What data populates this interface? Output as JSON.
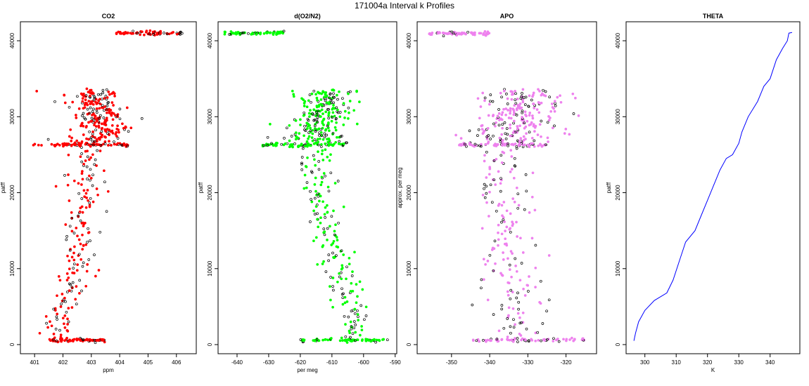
{
  "figure_title": "171004a   Interval k Profiles",
  "colors": {
    "co2": "#ff0000",
    "o2n2": "#00ff00",
    "apo": "#ee82ee",
    "theta": "#0000ff",
    "outline": "#000000"
  },
  "chart_data": [
    {
      "type": "scatter",
      "title": "CO2",
      "xlabel": "ppm",
      "ylabel": "patff",
      "xlim": [
        400.5,
        406.7
      ],
      "ylim": [
        -1200,
        42500
      ],
      "xticks": [
        401,
        402,
        403,
        404,
        405,
        406
      ],
      "yticks": [
        0,
        10000,
        20000,
        30000,
        40000
      ],
      "color_key": "co2",
      "min_value": 401.0,
      "profile": [
        [
          0,
          401.8
        ],
        [
          2000,
          401.8
        ],
        [
          4000,
          401.9
        ],
        [
          6000,
          402.1
        ],
        [
          8000,
          402.3
        ],
        [
          10000,
          402.5
        ],
        [
          12000,
          402.5
        ],
        [
          14000,
          402.6
        ],
        [
          16000,
          402.6
        ],
        [
          18000,
          402.7
        ],
        [
          20000,
          402.8
        ],
        [
          22000,
          402.8
        ],
        [
          24000,
          402.9
        ],
        [
          26300,
          402.9
        ],
        [
          28000,
          403.3
        ],
        [
          30000,
          403.2
        ],
        [
          33500,
          403.0
        ]
      ],
      "spread": 0.3,
      "bands": [
        {
          "y": 600,
          "x0": 401.5,
          "x1": 403.5
        },
        {
          "y": 26300,
          "x0": 400.9,
          "x1": 404.3
        },
        {
          "y": 41000,
          "x0": 403.8,
          "x1": 406.2
        }
      ]
    },
    {
      "type": "scatter",
      "title": "d(O2/N2)",
      "xlabel": "per meg",
      "ylabel": "patff",
      "xlim": [
        -646,
        -589.5
      ],
      "ylim": [
        -1200,
        42500
      ],
      "xticks": [
        -640,
        -630,
        -620,
        -610,
        -600,
        -590
      ],
      "yticks": [
        0,
        10000,
        20000,
        30000,
        40000
      ],
      "color_key": "o2n2",
      "min_value": null,
      "profile": [
        [
          0,
          -602
        ],
        [
          3000,
          -603
        ],
        [
          6000,
          -605
        ],
        [
          9000,
          -607
        ],
        [
          12000,
          -609
        ],
        [
          15000,
          -612
        ],
        [
          18000,
          -613
        ],
        [
          21000,
          -614
        ],
        [
          24000,
          -615
        ],
        [
          26300,
          -616
        ],
        [
          30000,
          -613
        ],
        [
          33500,
          -610
        ]
      ],
      "spread": 3.0,
      "bands": [
        {
          "y": 600,
          "x0": -620,
          "x1": -592
        },
        {
          "y": 26300,
          "x0": -632,
          "x1": -606
        },
        {
          "y": 41000,
          "x0": -644,
          "x1": -625
        }
      ]
    },
    {
      "type": "scatter",
      "title": "APO",
      "xlabel": "",
      "ylabel": "approx. per meg",
      "xlim": [
        -359,
        -312
      ],
      "ylim": [
        -1200,
        42500
      ],
      "xticks": [
        -350,
        -340,
        -330,
        -320
      ],
      "yticks": [
        0,
        10000,
        20000,
        30000,
        40000
      ],
      "color_key": "apo",
      "min_value": null,
      "profile": [
        [
          0,
          -333
        ],
        [
          5000,
          -334
        ],
        [
          10000,
          -335
        ],
        [
          15000,
          -336
        ],
        [
          20000,
          -336
        ],
        [
          26300,
          -335
        ],
        [
          30000,
          -332
        ],
        [
          33500,
          -331
        ]
      ],
      "spread": 3.5,
      "bands": [
        {
          "y": 600,
          "x0": -345,
          "x1": -315
        },
        {
          "y": 26300,
          "x0": -348,
          "x1": -325
        },
        {
          "y": 41000,
          "x0": -356,
          "x1": -340
        }
      ]
    },
    {
      "type": "line",
      "title": "THETA",
      "xlabel": "K",
      "ylabel": "patff",
      "xlim": [
        294,
        349.5
      ],
      "ylim": [
        -1200,
        42500
      ],
      "xticks": [
        300,
        310,
        320,
        330,
        340
      ],
      "yticks": [
        0,
        10000,
        20000,
        30000,
        40000
      ],
      "color_key": "theta",
      "x": [
        296.5,
        297,
        298,
        300,
        303,
        307,
        309,
        311,
        313,
        316,
        318,
        320,
        322,
        324,
        326,
        328,
        330,
        331,
        333,
        336,
        338,
        340,
        342,
        344,
        345.5,
        346,
        347
      ],
      "y": [
        500,
        1500,
        3000,
        4500,
        5800,
        6800,
        8500,
        11000,
        13500,
        15000,
        17000,
        19000,
        21000,
        23000,
        24500,
        25000,
        26500,
        28000,
        30000,
        32000,
        34000,
        35000,
        37500,
        39000,
        40000,
        41000,
        41100
      ]
    }
  ]
}
